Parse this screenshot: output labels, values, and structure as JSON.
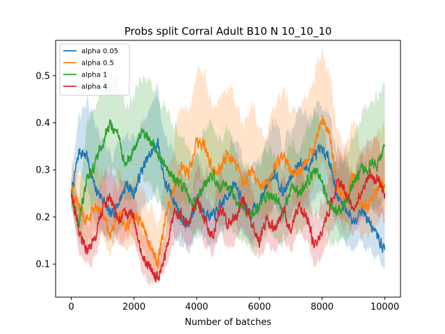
{
  "chart_data": {
    "type": "line",
    "title": "Probs split Corral Adult B10 N 10_10_10",
    "xlabel": "Number of batches",
    "ylabel": "",
    "xlim": [
      -500,
      10500
    ],
    "ylim": [
      0.03,
      0.575
    ],
    "xticks": [
      0,
      2000,
      4000,
      6000,
      8000,
      10000
    ],
    "xtick_labels": [
      "0",
      "2000",
      "4000",
      "6000",
      "8000",
      "10000"
    ],
    "yticks": [
      0.1,
      0.2,
      0.3,
      0.4,
      0.5
    ],
    "ytick_labels": [
      "0.1",
      "0.2",
      "0.3",
      "0.4",
      "0.5"
    ],
    "grid": false,
    "legend_position": "top-left",
    "x": [
      0,
      250,
      500,
      750,
      1000,
      1250,
      1500,
      1750,
      2000,
      2250,
      2500,
      2750,
      3000,
      3250,
      3500,
      3750,
      4000,
      4250,
      4500,
      4750,
      5000,
      5250,
      5500,
      5750,
      6000,
      6250,
      6500,
      6750,
      7000,
      7250,
      7500,
      7750,
      8000,
      8250,
      8500,
      8750,
      9000,
      9250,
      9500,
      9750,
      10000
    ],
    "series": [
      {
        "name": "alpha 0.05",
        "color": "#1f77b4",
        "values": [
          0.25,
          0.34,
          0.33,
          0.26,
          0.24,
          0.2,
          0.23,
          0.27,
          0.25,
          0.3,
          0.33,
          0.36,
          0.27,
          0.24,
          0.2,
          0.18,
          0.24,
          0.21,
          0.2,
          0.22,
          0.25,
          0.27,
          0.22,
          0.21,
          0.23,
          0.27,
          0.3,
          0.25,
          0.28,
          0.32,
          0.3,
          0.33,
          0.34,
          0.32,
          0.24,
          0.22,
          0.19,
          0.22,
          0.19,
          0.16,
          0.13
        ],
        "lower": [
          0.22,
          0.3,
          0.26,
          0.19,
          0.17,
          0.15,
          0.17,
          0.2,
          0.18,
          0.22,
          0.24,
          0.26,
          0.2,
          0.17,
          0.14,
          0.13,
          0.17,
          0.15,
          0.14,
          0.16,
          0.18,
          0.19,
          0.16,
          0.15,
          0.16,
          0.2,
          0.22,
          0.18,
          0.2,
          0.23,
          0.22,
          0.24,
          0.25,
          0.23,
          0.17,
          0.15,
          0.13,
          0.15,
          0.13,
          0.11,
          0.09
        ],
        "upper": [
          0.28,
          0.42,
          0.45,
          0.4,
          0.38,
          0.33,
          0.34,
          0.37,
          0.36,
          0.4,
          0.43,
          0.47,
          0.37,
          0.34,
          0.3,
          0.28,
          0.33,
          0.3,
          0.29,
          0.31,
          0.35,
          0.37,
          0.31,
          0.3,
          0.32,
          0.37,
          0.41,
          0.35,
          0.38,
          0.43,
          0.41,
          0.43,
          0.44,
          0.41,
          0.33,
          0.32,
          0.29,
          0.33,
          0.29,
          0.25,
          0.2
        ]
      },
      {
        "name": "alpha 0.5",
        "color": "#ff7f0e",
        "values": [
          0.26,
          0.22,
          0.19,
          0.22,
          0.21,
          0.16,
          0.21,
          0.18,
          0.2,
          0.19,
          0.14,
          0.1,
          0.2,
          0.25,
          0.31,
          0.29,
          0.36,
          0.35,
          0.3,
          0.3,
          0.34,
          0.31,
          0.27,
          0.3,
          0.27,
          0.26,
          0.31,
          0.33,
          0.3,
          0.29,
          0.32,
          0.35,
          0.41,
          0.37,
          0.26,
          0.24,
          0.29,
          0.22,
          0.23,
          0.26,
          0.27
        ],
        "lower": [
          0.22,
          0.17,
          0.14,
          0.17,
          0.16,
          0.12,
          0.16,
          0.13,
          0.14,
          0.14,
          0.09,
          0.06,
          0.14,
          0.19,
          0.24,
          0.22,
          0.28,
          0.27,
          0.23,
          0.23,
          0.26,
          0.24,
          0.2,
          0.23,
          0.2,
          0.19,
          0.24,
          0.25,
          0.23,
          0.22,
          0.24,
          0.27,
          0.32,
          0.28,
          0.19,
          0.17,
          0.22,
          0.16,
          0.16,
          0.19,
          0.2
        ],
        "upper": [
          0.31,
          0.29,
          0.26,
          0.3,
          0.29,
          0.23,
          0.29,
          0.25,
          0.28,
          0.27,
          0.22,
          0.18,
          0.29,
          0.35,
          0.44,
          0.42,
          0.52,
          0.5,
          0.43,
          0.44,
          0.48,
          0.45,
          0.39,
          0.44,
          0.39,
          0.37,
          0.44,
          0.47,
          0.43,
          0.42,
          0.46,
          0.49,
          0.56,
          0.51,
          0.38,
          0.35,
          0.42,
          0.33,
          0.34,
          0.38,
          0.39
        ]
      },
      {
        "name": "alpha 1",
        "color": "#2ca02c",
        "values": [
          0.25,
          0.19,
          0.28,
          0.31,
          0.36,
          0.4,
          0.37,
          0.31,
          0.34,
          0.38,
          0.37,
          0.33,
          0.31,
          0.28,
          0.27,
          0.24,
          0.23,
          0.27,
          0.29,
          0.26,
          0.27,
          0.24,
          0.22,
          0.2,
          0.22,
          0.25,
          0.24,
          0.21,
          0.26,
          0.25,
          0.27,
          0.3,
          0.28,
          0.22,
          0.21,
          0.23,
          0.27,
          0.3,
          0.31,
          0.31,
          0.35
        ],
        "lower": [
          0.22,
          0.15,
          0.21,
          0.23,
          0.27,
          0.31,
          0.28,
          0.23,
          0.25,
          0.28,
          0.27,
          0.24,
          0.22,
          0.2,
          0.19,
          0.17,
          0.16,
          0.19,
          0.21,
          0.18,
          0.19,
          0.16,
          0.15,
          0.13,
          0.14,
          0.17,
          0.16,
          0.14,
          0.18,
          0.17,
          0.19,
          0.21,
          0.19,
          0.15,
          0.14,
          0.15,
          0.19,
          0.21,
          0.22,
          0.22,
          0.25
        ],
        "upper": [
          0.29,
          0.25,
          0.38,
          0.44,
          0.5,
          0.52,
          0.49,
          0.43,
          0.46,
          0.5,
          0.49,
          0.45,
          0.43,
          0.39,
          0.38,
          0.34,
          0.33,
          0.38,
          0.4,
          0.36,
          0.38,
          0.34,
          0.31,
          0.29,
          0.31,
          0.35,
          0.34,
          0.3,
          0.36,
          0.35,
          0.38,
          0.41,
          0.39,
          0.32,
          0.31,
          0.33,
          0.38,
          0.42,
          0.44,
          0.45,
          0.49
        ]
      },
      {
        "name": "alpha 4",
        "color": "#d62728",
        "values": [
          0.25,
          0.16,
          0.13,
          0.15,
          0.22,
          0.24,
          0.19,
          0.21,
          0.2,
          0.12,
          0.09,
          0.07,
          0.12,
          0.2,
          0.21,
          0.18,
          0.24,
          0.19,
          0.16,
          0.22,
          0.18,
          0.2,
          0.24,
          0.19,
          0.15,
          0.2,
          0.17,
          0.22,
          0.17,
          0.23,
          0.2,
          0.14,
          0.17,
          0.22,
          0.27,
          0.26,
          0.21,
          0.26,
          0.29,
          0.28,
          0.25
        ],
        "lower": [
          0.22,
          0.12,
          0.09,
          0.11,
          0.17,
          0.18,
          0.14,
          0.16,
          0.15,
          0.09,
          0.06,
          0.06,
          0.09,
          0.15,
          0.16,
          0.13,
          0.18,
          0.14,
          0.12,
          0.17,
          0.13,
          0.15,
          0.18,
          0.14,
          0.11,
          0.15,
          0.12,
          0.16,
          0.12,
          0.17,
          0.15,
          0.1,
          0.12,
          0.16,
          0.2,
          0.19,
          0.16,
          0.19,
          0.22,
          0.21,
          0.19
        ],
        "upper": [
          0.28,
          0.22,
          0.19,
          0.21,
          0.29,
          0.31,
          0.26,
          0.28,
          0.26,
          0.18,
          0.15,
          0.12,
          0.18,
          0.26,
          0.28,
          0.24,
          0.31,
          0.26,
          0.22,
          0.29,
          0.25,
          0.27,
          0.31,
          0.26,
          0.21,
          0.27,
          0.23,
          0.29,
          0.23,
          0.3,
          0.27,
          0.2,
          0.23,
          0.29,
          0.35,
          0.34,
          0.28,
          0.34,
          0.37,
          0.36,
          0.33
        ]
      }
    ]
  }
}
